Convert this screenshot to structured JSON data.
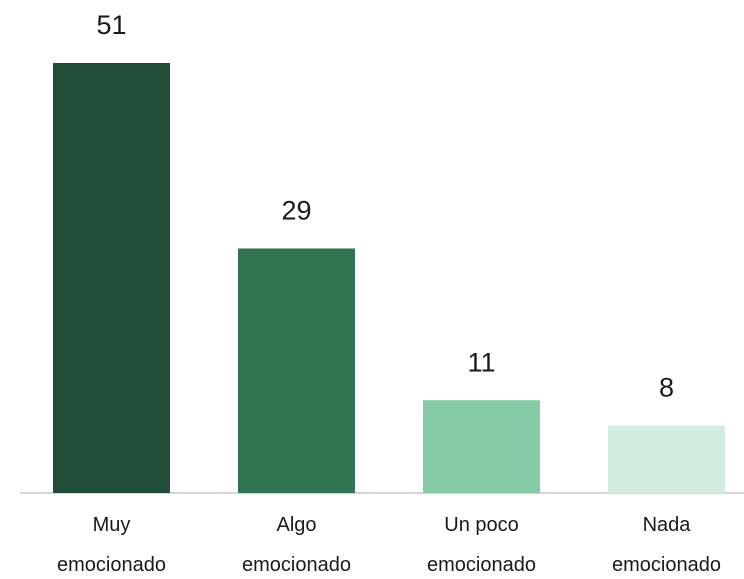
{
  "chart_data": {
    "type": "bar",
    "categories": [
      "Muy emocionado",
      "Algo emocionado",
      "Un poco emocionado",
      "Nada emocionado"
    ],
    "series": [
      {
        "values": [
          51,
          29,
          11,
          8
        ],
        "colors": [
          "#214e37",
          "#317451",
          "#86cba6",
          "#d3ece0"
        ]
      }
    ],
    "grid": false
  }
}
